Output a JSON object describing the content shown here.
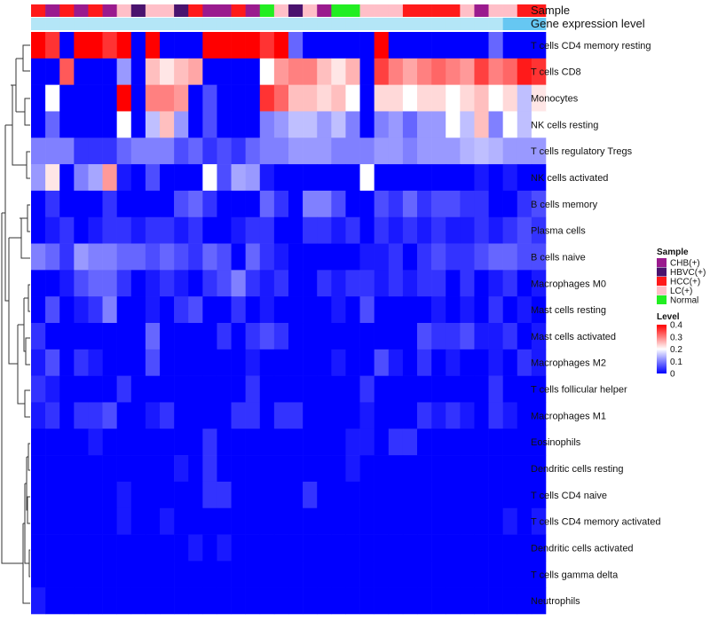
{
  "chart_data": {
    "type": "heatmap",
    "title": "",
    "annotation_tracks": [
      {
        "label": "Sample",
        "palette_key": "sample"
      },
      {
        "label": "Gene expression level",
        "palette_key": "level_track"
      }
    ],
    "n_columns": 36,
    "sample_colors": {
      "CHB(+)": "#9a1b8e",
      "HBVC(+)": "#4a136e",
      "HCC(+)": "#ff1a1a",
      "LC(+)": "#ffbfc8",
      "Normal": "#22ee22"
    },
    "level_track": {
      "light_color": "#b4e6f7",
      "dark_color": "#66c7f2",
      "split_column": 33
    },
    "columns_sample": [
      "HCC(+)",
      "CHB(+)",
      "HCC(+)",
      "CHB(+)",
      "HCC(+)",
      "CHB(+)",
      "LC(+)",
      "HBVC(+)",
      "LC(+)",
      "LC(+)",
      "HBVC(+)",
      "HCC(+)",
      "CHB(+)",
      "CHB(+)",
      "HCC(+)",
      "CHB(+)",
      "Normal",
      "LC(+)",
      "HBVC(+)",
      "LC(+)",
      "CHB(+)",
      "Normal",
      "Normal",
      "LC(+)",
      "LC(+)",
      "LC(+)",
      "HCC(+)",
      "HCC(+)",
      "HCC(+)",
      "HCC(+)",
      "LC(+)",
      "CHB(+)",
      "LC(+)",
      "LC(+)",
      "HCC(+)",
      "HCC(+)"
    ],
    "row_labels": [
      "T cells CD4 memory resting",
      "T cells CD8",
      "Monocytes",
      "NK cells resting",
      "T cells regulatory  Tregs",
      "NK cells activated",
      "B cells memory",
      "Plasma cells",
      "B cells naive",
      "Macrophages M0",
      "Mast cells resting",
      "Mast cells activated",
      "Macrophages M2",
      "T cells follicular helper",
      "Macrophages M1",
      "Eosinophils",
      "Dendritic cells resting",
      "T cells CD4 naive",
      "T cells CD4 memory activated",
      "Dendritic cells activated",
      "T cells gamma delta",
      "Neutrophils"
    ],
    "values": [
      [
        0.42,
        0.36,
        0.0,
        0.4,
        0.4,
        0.36,
        0.4,
        0.0,
        0.4,
        0.0,
        0.0,
        0.0,
        0.4,
        0.4,
        0.4,
        0.4,
        0.36,
        0.4,
        0.08,
        0.0,
        0.0,
        0.0,
        0.0,
        0.0,
        0.4,
        0.0,
        0.0,
        0.0,
        0.0,
        0.0,
        0.0,
        0.0,
        0.08,
        0.0,
        0.0,
        0.0
      ],
      [
        0.0,
        0.0,
        0.33,
        0.0,
        0.0,
        0.0,
        0.12,
        0.0,
        0.25,
        0.22,
        0.25,
        0.27,
        0.0,
        0.0,
        0.0,
        0.0,
        0.2,
        0.28,
        0.3,
        0.3,
        0.25,
        0.22,
        0.26,
        0.0,
        0.35,
        0.3,
        0.27,
        0.3,
        0.32,
        0.3,
        0.28,
        0.35,
        0.3,
        0.32,
        0.38,
        0.36
      ],
      [
        0.0,
        0.2,
        0.0,
        0.0,
        0.0,
        0.0,
        0.42,
        0.0,
        0.3,
        0.3,
        0.28,
        0.0,
        0.06,
        0.0,
        0.0,
        0.0,
        0.36,
        0.32,
        0.25,
        0.25,
        0.23,
        0.25,
        0.2,
        0.0,
        0.23,
        0.23,
        0.2,
        0.23,
        0.23,
        0.2,
        0.23,
        0.25,
        0.2,
        0.23,
        0.15,
        0.22
      ],
      [
        0.0,
        0.08,
        0.0,
        0.0,
        0.0,
        0.0,
        0.2,
        0.0,
        0.15,
        0.25,
        0.12,
        0.0,
        0.06,
        0.0,
        0.0,
        0.0,
        0.1,
        0.12,
        0.15,
        0.15,
        0.12,
        0.15,
        0.1,
        0.0,
        0.1,
        0.12,
        0.08,
        0.12,
        0.12,
        0.2,
        0.15,
        0.25,
        0.1,
        0.2,
        0.15,
        0.2
      ],
      [
        0.1,
        0.1,
        0.1,
        0.04,
        0.04,
        0.04,
        0.08,
        0.1,
        0.1,
        0.1,
        0.06,
        0.08,
        0.04,
        0.06,
        0.04,
        0.08,
        0.1,
        0.1,
        0.12,
        0.12,
        0.12,
        0.1,
        0.1,
        0.1,
        0.12,
        0.12,
        0.1,
        0.12,
        0.12,
        0.12,
        0.14,
        0.15,
        0.14,
        0.12,
        0.12,
        0.12
      ],
      [
        0.12,
        0.22,
        0.0,
        0.1,
        0.13,
        0.28,
        0.02,
        0.0,
        0.06,
        0.0,
        0.0,
        0.0,
        0.2,
        0.06,
        0.13,
        0.12,
        0.02,
        0.0,
        0.0,
        0.0,
        0.0,
        0.0,
        0.0,
        0.2,
        0.0,
        0.0,
        0.0,
        0.0,
        0.0,
        0.0,
        0.0,
        0.02,
        0.0,
        0.02,
        0.0,
        0.0
      ],
      [
        0.0,
        0.04,
        0.0,
        0.0,
        0.0,
        0.04,
        0.0,
        0.0,
        0.0,
        0.0,
        0.06,
        0.08,
        0.04,
        0.0,
        0.0,
        0.0,
        0.08,
        0.04,
        0.0,
        0.1,
        0.1,
        0.06,
        0.0,
        0.0,
        0.06,
        0.04,
        0.08,
        0.04,
        0.06,
        0.06,
        0.04,
        0.04,
        0.0,
        0.0,
        0.04,
        0.06
      ],
      [
        0.0,
        0.02,
        0.04,
        0.0,
        0.02,
        0.04,
        0.04,
        0.02,
        0.04,
        0.04,
        0.02,
        0.04,
        0.0,
        0.0,
        0.02,
        0.04,
        0.04,
        0.0,
        0.0,
        0.04,
        0.04,
        0.02,
        0.04,
        0.0,
        0.04,
        0.02,
        0.04,
        0.02,
        0.04,
        0.02,
        0.02,
        0.04,
        0.02,
        0.04,
        0.06,
        0.04
      ],
      [
        0.1,
        0.08,
        0.04,
        0.12,
        0.1,
        0.1,
        0.08,
        0.08,
        0.06,
        0.08,
        0.06,
        0.04,
        0.08,
        0.06,
        0.0,
        0.08,
        0.04,
        0.02,
        0.0,
        0.0,
        0.0,
        0.0,
        0.0,
        0.02,
        0.02,
        0.04,
        0.0,
        0.04,
        0.06,
        0.04,
        0.04,
        0.06,
        0.08,
        0.08,
        0.06,
        0.06
      ],
      [
        0.0,
        0.0,
        0.02,
        0.06,
        0.08,
        0.08,
        0.04,
        0.0,
        0.02,
        0.04,
        0.02,
        0.0,
        0.04,
        0.06,
        0.1,
        0.04,
        0.02,
        0.04,
        0.0,
        0.0,
        0.04,
        0.02,
        0.04,
        0.04,
        0.02,
        0.04,
        0.02,
        0.04,
        0.04,
        0.0,
        0.04,
        0.0,
        0.02,
        0.04,
        0.0,
        0.02
      ],
      [
        0.0,
        0.06,
        0.0,
        0.02,
        0.04,
        0.1,
        0.0,
        0.0,
        0.02,
        0.0,
        0.04,
        0.06,
        0.0,
        0.0,
        0.04,
        0.0,
        0.02,
        0.0,
        0.0,
        0.0,
        0.0,
        0.02,
        0.0,
        0.06,
        0.0,
        0.0,
        0.0,
        0.0,
        0.02,
        0.0,
        0.02,
        0.0,
        0.04,
        0.0,
        0.02,
        0.0
      ],
      [
        0.04,
        0.0,
        0.0,
        0.0,
        0.0,
        0.0,
        0.0,
        0.0,
        0.08,
        0.0,
        0.0,
        0.0,
        0.0,
        0.04,
        0.0,
        0.04,
        0.06,
        0.04,
        0.0,
        0.0,
        0.0,
        0.0,
        0.0,
        0.0,
        0.0,
        0.0,
        0.0,
        0.06,
        0.04,
        0.04,
        0.06,
        0.02,
        0.02,
        0.04,
        0.0,
        0.02
      ],
      [
        0.02,
        0.06,
        0.0,
        0.04,
        0.02,
        0.0,
        0.0,
        0.0,
        0.06,
        0.0,
        0.0,
        0.0,
        0.0,
        0.0,
        0.0,
        0.02,
        0.0,
        0.0,
        0.0,
        0.0,
        0.0,
        0.02,
        0.0,
        0.0,
        0.06,
        0.02,
        0.0,
        0.04,
        0.0,
        0.02,
        0.0,
        0.0,
        0.02,
        0.0,
        0.04,
        0.02
      ],
      [
        0.04,
        0.02,
        0.0,
        0.0,
        0.0,
        0.0,
        0.04,
        0.0,
        0.0,
        0.0,
        0.0,
        0.0,
        0.0,
        0.0,
        0.0,
        0.04,
        0.0,
        0.0,
        0.0,
        0.0,
        0.0,
        0.0,
        0.0,
        0.04,
        0.0,
        0.0,
        0.0,
        0.0,
        0.0,
        0.0,
        0.0,
        0.0,
        0.04,
        0.0,
        0.0,
        0.0
      ],
      [
        0.02,
        0.04,
        0.0,
        0.04,
        0.04,
        0.06,
        0.0,
        0.0,
        0.02,
        0.04,
        0.0,
        0.0,
        0.0,
        0.0,
        0.04,
        0.04,
        0.0,
        0.04,
        0.04,
        0.0,
        0.0,
        0.0,
        0.0,
        0.02,
        0.0,
        0.0,
        0.0,
        0.04,
        0.02,
        0.04,
        0.02,
        0.0,
        0.04,
        0.02,
        0.0,
        0.0
      ],
      [
        0.0,
        0.0,
        0.0,
        0.0,
        0.02,
        0.0,
        0.0,
        0.0,
        0.0,
        0.0,
        0.0,
        0.0,
        0.04,
        0.0,
        0.0,
        0.0,
        0.0,
        0.0,
        0.0,
        0.0,
        0.0,
        0.0,
        0.02,
        0.02,
        0.0,
        0.04,
        0.04,
        0.0,
        0.0,
        0.0,
        0.0,
        0.0,
        0.0,
        0.0,
        0.0,
        0.0
      ],
      [
        0.0,
        0.0,
        0.0,
        0.0,
        0.0,
        0.0,
        0.0,
        0.0,
        0.0,
        0.0,
        0.02,
        0.0,
        0.04,
        0.0,
        0.0,
        0.0,
        0.0,
        0.0,
        0.0,
        0.0,
        0.0,
        0.0,
        0.02,
        0.0,
        0.0,
        0.0,
        0.0,
        0.0,
        0.0,
        0.0,
        0.0,
        0.0,
        0.0,
        0.0,
        0.0,
        0.0
      ],
      [
        0.0,
        0.0,
        0.0,
        0.0,
        0.0,
        0.0,
        0.02,
        0.0,
        0.0,
        0.0,
        0.0,
        0.0,
        0.04,
        0.04,
        0.0,
        0.0,
        0.0,
        0.0,
        0.0,
        0.04,
        0.0,
        0.0,
        0.0,
        0.0,
        0.0,
        0.0,
        0.0,
        0.0,
        0.0,
        0.0,
        0.0,
        0.0,
        0.0,
        0.0,
        0.0,
        0.0
      ],
      [
        0.0,
        0.0,
        0.0,
        0.0,
        0.0,
        0.0,
        0.02,
        0.0,
        0.0,
        0.02,
        0.0,
        0.0,
        0.0,
        0.0,
        0.0,
        0.0,
        0.0,
        0.0,
        0.0,
        0.0,
        0.0,
        0.0,
        0.0,
        0.0,
        0.0,
        0.0,
        0.0,
        0.0,
        0.0,
        0.0,
        0.0,
        0.0,
        0.0,
        0.02,
        0.0,
        0.02
      ],
      [
        0.0,
        0.0,
        0.0,
        0.0,
        0.0,
        0.0,
        0.0,
        0.0,
        0.0,
        0.0,
        0.0,
        0.02,
        0.0,
        0.02,
        0.0,
        0.0,
        0.0,
        0.0,
        0.0,
        0.0,
        0.0,
        0.0,
        0.0,
        0.0,
        0.0,
        0.0,
        0.0,
        0.0,
        0.0,
        0.0,
        0.0,
        0.0,
        0.0,
        0.0,
        0.0,
        0.0
      ],
      [
        0.0,
        0.0,
        0.0,
        0.0,
        0.0,
        0.0,
        0.0,
        0.0,
        0.0,
        0.0,
        0.0,
        0.0,
        0.0,
        0.0,
        0.0,
        0.0,
        0.0,
        0.0,
        0.0,
        0.0,
        0.0,
        0.0,
        0.0,
        0.0,
        0.0,
        0.0,
        0.0,
        0.0,
        0.0,
        0.0,
        0.0,
        0.0,
        0.0,
        0.0,
        0.0,
        0.0
      ],
      [
        0.02,
        0.0,
        0.0,
        0.0,
        0.0,
        0.0,
        0.0,
        0.0,
        0.0,
        0.0,
        0.0,
        0.0,
        0.0,
        0.0,
        0.0,
        0.0,
        0.0,
        0.0,
        0.0,
        0.0,
        0.0,
        0.0,
        0.0,
        0.0,
        0.0,
        0.0,
        0.0,
        0.0,
        0.0,
        0.0,
        0.0,
        0.0,
        0.0,
        0.0,
        0.0,
        0.0
      ]
    ],
    "color_scale": {
      "min": 0,
      "max": 0.4,
      "stops": [
        {
          "value": 0,
          "color": "#0000ff"
        },
        {
          "value": 0.2,
          "color": "#ffffff"
        },
        {
          "value": 0.4,
          "color": "#ff0000"
        }
      ]
    },
    "legend": {
      "position": "right",
      "sample": {
        "title": "Sample",
        "entries": [
          "CHB(+)",
          "HBVC(+)",
          "HCC(+)",
          "LC(+)",
          "Normal"
        ]
      },
      "level": {
        "title": "Level",
        "ticks": [
          "0.4",
          "0.3",
          "0.2",
          "0.1",
          "0"
        ],
        "tick_values": [
          0.4,
          0.3,
          0.2,
          0.1,
          0
        ]
      }
    },
    "dendrogram": "rows clustered (left side)"
  }
}
